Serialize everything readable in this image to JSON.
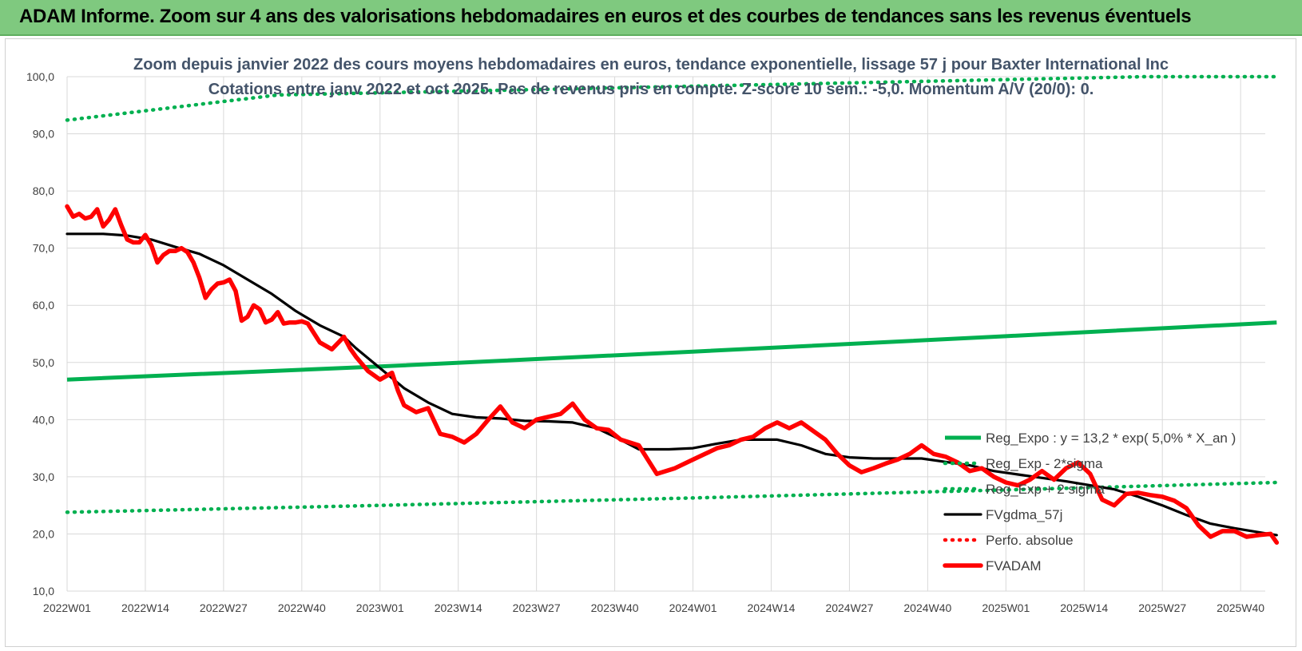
{
  "header": {
    "title": "ADAM Informe. Zoom sur 4 ans des valorisations hebdomadaires en euros et des courbes de tendances sans les revenus éventuels"
  },
  "chart_data": {
    "type": "line",
    "title": "Zoom depuis janvier 2022 des cours moyens hebdomadaires en euros, tendance exponentielle, lissage 57 j pour Baxter International Inc",
    "subtitle": "Cotations entre janv 2022 et oct 2025. Pas de revenus pris en compte. Z-score 10 sem.: -5,0. Momentum A/V (20/0): 0.",
    "ylim": [
      10,
      100
    ],
    "yticks": [
      "10,0",
      "20,0",
      "30,0",
      "40,0",
      "50,0",
      "60,0",
      "70,0",
      "80,0",
      "90,0",
      "100,0"
    ],
    "ytick_values": [
      10,
      20,
      30,
      40,
      50,
      60,
      70,
      80,
      90,
      100
    ],
    "xlim": [
      0,
      201
    ],
    "xticks": [
      "2022W01",
      "2022W14",
      "2022W27",
      "2022W40",
      "2023W01",
      "2023W14",
      "2023W27",
      "2023W40",
      "2024W01",
      "2024W14",
      "2024W27",
      "2024W40",
      "2025W01",
      "2025W14",
      "2025W27",
      "2025W40"
    ],
    "xtick_index": [
      0,
      13,
      26,
      39,
      52,
      65,
      78,
      91,
      104,
      117,
      130,
      143,
      156,
      169,
      182,
      195
    ],
    "series": [
      {
        "name": "Reg_Expo : y = 13,2 * exp( 5,0% * X_an )",
        "color": "#00b050",
        "style": "solid",
        "x": [
          0,
          52,
          104,
          156,
          201
        ],
        "values": [
          47.0,
          49.3,
          51.9,
          54.6,
          57.0
        ]
      },
      {
        "name": "Reg_Exp - 2*sigma",
        "color": "#00b050",
        "style": "dotted",
        "x": [
          0,
          52,
          104,
          156,
          201
        ],
        "values": [
          23.8,
          25.0,
          26.3,
          27.7,
          29.0
        ]
      },
      {
        "name": "Reg_Exp + 2 sigma",
        "color": "#00b050",
        "style": "dotted",
        "x": [
          0,
          35,
          179,
          201
        ],
        "values": [
          92.4,
          96.8,
          100.0,
          100.0
        ]
      },
      {
        "name": "FVgdma_57j",
        "color": "#000000",
        "style": "solid",
        "x": [
          0,
          6,
          10,
          14,
          18,
          22,
          26,
          30,
          34,
          38,
          42,
          46,
          48,
          52,
          56,
          60,
          64,
          68,
          72,
          76,
          80,
          84,
          88,
          91,
          95,
          100,
          104,
          108,
          112,
          118,
          122,
          126,
          130,
          134,
          138,
          142,
          146,
          150,
          154,
          158,
          162,
          166,
          170,
          174,
          178,
          182,
          186,
          190,
          194,
          198,
          201
        ],
        "values": [
          72.5,
          72.5,
          72.2,
          71.5,
          70.2,
          69.0,
          67.0,
          64.5,
          62.0,
          59.0,
          56.5,
          54.5,
          52.5,
          49.0,
          45.5,
          43.0,
          41.0,
          40.4,
          40.2,
          39.8,
          39.7,
          39.5,
          38.5,
          37.0,
          34.8,
          34.8,
          35.0,
          35.8,
          36.5,
          36.5,
          35.5,
          34.0,
          33.4,
          33.2,
          33.2,
          33.2,
          32.6,
          32.0,
          31.0,
          30.4,
          29.8,
          29.2,
          28.5,
          27.8,
          26.5,
          25.0,
          23.3,
          21.8,
          21.0,
          20.3,
          19.8
        ]
      },
      {
        "name": "Perfo. absolue",
        "color": "#ff0000",
        "style": "dotted",
        "x": [],
        "values": []
      },
      {
        "name": "FVADAM",
        "color": "#ff0000",
        "style": "solid",
        "x": [
          0,
          1,
          2,
          3,
          4,
          5,
          6,
          7,
          8,
          9,
          10,
          11,
          12,
          13,
          14,
          15,
          16,
          17,
          18,
          19,
          20,
          21,
          22,
          23,
          24,
          25,
          26,
          27,
          28,
          29,
          30,
          31,
          32,
          33,
          34,
          35,
          36,
          37,
          38,
          39,
          40,
          42,
          44,
          46,
          47,
          48,
          50,
          52,
          54,
          55,
          56,
          58,
          60,
          62,
          64,
          66,
          68,
          70,
          72,
          74,
          76,
          78,
          80,
          82,
          84,
          86,
          88,
          90,
          92,
          95,
          98,
          101,
          104,
          106,
          108,
          110,
          112,
          114,
          116,
          118,
          120,
          122,
          124,
          126,
          128,
          130,
          132,
          134,
          136,
          138,
          140,
          142,
          144,
          146,
          148,
          150,
          152,
          154,
          156,
          158,
          160,
          162,
          164,
          166,
          168,
          170,
          172,
          174,
          176,
          178,
          180,
          182,
          184,
          186,
          188,
          190,
          192,
          194,
          196,
          198,
          200,
          201
        ],
        "values": [
          77.3,
          75.5,
          76.0,
          75.2,
          75.5,
          76.8,
          73.8,
          75.0,
          76.8,
          74.0,
          71.5,
          71.0,
          71.0,
          72.3,
          70.5,
          67.5,
          68.8,
          69.5,
          69.5,
          70.0,
          69.3,
          67.5,
          64.8,
          61.3,
          62.8,
          63.8,
          64.0,
          64.5,
          62.5,
          57.3,
          58.0,
          60.0,
          59.3,
          57.0,
          57.5,
          58.8,
          56.8,
          57.0,
          57.0,
          57.2,
          56.8,
          53.5,
          52.3,
          54.5,
          52.5,
          51.0,
          48.5,
          47.0,
          48.2,
          45.0,
          42.5,
          41.3,
          42.0,
          37.5,
          37.0,
          36.0,
          37.5,
          40.0,
          42.3,
          39.5,
          38.5,
          40.0,
          40.5,
          41.0,
          42.8,
          40.0,
          38.5,
          38.2,
          36.5,
          35.5,
          30.5,
          31.5,
          33.0,
          34.0,
          35.0,
          35.5,
          36.5,
          37.0,
          38.5,
          39.5,
          38.5,
          39.5,
          38.0,
          36.5,
          34.0,
          32.0,
          30.8,
          31.5,
          32.3,
          33.0,
          34.0,
          35.5,
          34.0,
          33.5,
          32.5,
          31.0,
          31.5,
          30.0,
          29.0,
          28.5,
          29.5,
          31.0,
          29.5,
          31.5,
          32.5,
          30.5,
          26.0,
          25.0,
          27.0,
          27.2,
          26.8,
          26.5,
          25.8,
          24.5,
          21.5,
          19.5,
          20.5,
          20.5,
          19.5,
          19.8,
          20.0,
          18.5
        ]
      }
    ],
    "legend_position": "right"
  },
  "colors": {
    "banner": "#7fc97f",
    "green": "#00b050",
    "red": "#ff0000",
    "black": "#000000",
    "grid": "#d9d9d9"
  }
}
